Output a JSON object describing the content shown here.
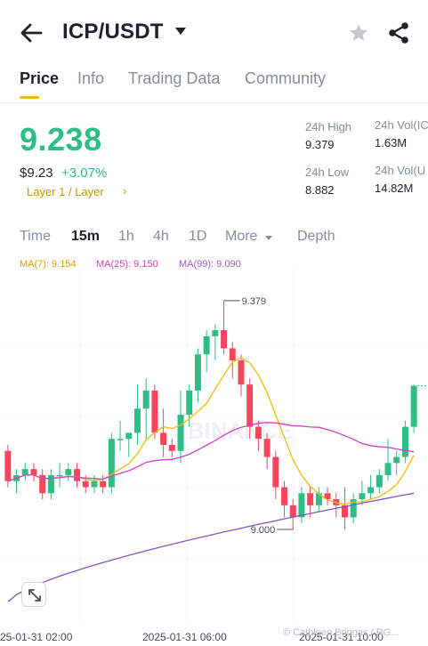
{
  "header": {
    "pair": "ICP/USDT",
    "icons": [
      "back-arrow-icon",
      "dropdown-caret-icon",
      "star-icon",
      "share-icon"
    ]
  },
  "tabs": [
    {
      "label": "Price",
      "active": true
    },
    {
      "label": "Info",
      "active": false
    },
    {
      "label": "Trading Data",
      "active": false
    },
    {
      "label": "Community",
      "active": false
    }
  ],
  "ticker": {
    "last_price": "9.238",
    "usd_price": "$9.23",
    "change_pct": "+3.07%",
    "tag": "Layer 1 / Layer",
    "tag_arrow": "›"
  },
  "stats": {
    "high_label": "24h High",
    "high": "9.379",
    "low_label": "24h Low",
    "low": "8.882",
    "vol_base_label": "24h Vol(IC",
    "vol_base": "1.63M",
    "vol_quote_label": "24h Vol(U",
    "vol_quote": "14.82M"
  },
  "timeframes": [
    "Time",
    "15m",
    "1h",
    "4h",
    "1D",
    "More",
    "Depth"
  ],
  "active_timeframe": "15m",
  "ma": {
    "ma7": "MA(7): 9.154",
    "ma25": "MA(25): 9.150",
    "ma99": "MA(99): 9.090"
  },
  "chart": {
    "high_marker": "9.379",
    "low_marker": "9.000",
    "watermark": "BINANCE",
    "x_labels": [
      "25-01-31 02:00",
      "2025-01-31 06:00",
      "2025-01-31 10:00"
    ],
    "footer_watermark": "© Cathleen Bringas / RG...",
    "colors": {
      "up": "#2ebd85",
      "down": "#f6465d",
      "ma7": "#f0b90b",
      "ma25": "#d63fc9",
      "ma99": "#7e57c2"
    }
  },
  "chart_data": {
    "type": "candlestick",
    "pair": "ICP/USDT",
    "interval": "15m",
    "candles": [
      {
        "o": 9.13,
        "h": 9.14,
        "l": 9.07,
        "c": 9.08
      },
      {
        "o": 9.08,
        "h": 9.1,
        "l": 9.06,
        "c": 9.09
      },
      {
        "o": 9.09,
        "h": 9.11,
        "l": 9.08,
        "c": 9.1
      },
      {
        "o": 9.1,
        "h": 9.11,
        "l": 9.08,
        "c": 9.09
      },
      {
        "o": 9.09,
        "h": 9.1,
        "l": 9.05,
        "c": 9.06
      },
      {
        "o": 9.06,
        "h": 9.1,
        "l": 9.05,
        "c": 9.09
      },
      {
        "o": 9.09,
        "h": 9.11,
        "l": 9.07,
        "c": 9.09
      },
      {
        "o": 9.09,
        "h": 9.11,
        "l": 9.08,
        "c": 9.1
      },
      {
        "o": 9.1,
        "h": 9.11,
        "l": 9.07,
        "c": 9.08
      },
      {
        "o": 9.08,
        "h": 9.09,
        "l": 9.06,
        "c": 9.07
      },
      {
        "o": 9.07,
        "h": 9.09,
        "l": 9.06,
        "c": 9.08
      },
      {
        "o": 9.08,
        "h": 9.09,
        "l": 9.06,
        "c": 9.07
      },
      {
        "o": 9.07,
        "h": 9.16,
        "l": 9.06,
        "c": 9.15
      },
      {
        "o": 9.15,
        "h": 9.18,
        "l": 9.13,
        "c": 9.15
      },
      {
        "o": 9.15,
        "h": 9.16,
        "l": 9.12,
        "c": 9.16
      },
      {
        "o": 9.16,
        "h": 9.24,
        "l": 9.14,
        "c": 9.2
      },
      {
        "o": 9.2,
        "h": 9.25,
        "l": 9.15,
        "c": 9.23
      },
      {
        "o": 9.23,
        "h": 9.24,
        "l": 9.15,
        "c": 9.16
      },
      {
        "o": 9.16,
        "h": 9.2,
        "l": 9.12,
        "c": 9.14
      },
      {
        "o": 9.14,
        "h": 9.15,
        "l": 9.12,
        "c": 9.13
      },
      {
        "o": 9.13,
        "h": 9.23,
        "l": 9.11,
        "c": 9.19
      },
      {
        "o": 9.19,
        "h": 9.24,
        "l": 9.17,
        "c": 9.23
      },
      {
        "o": 9.23,
        "h": 9.3,
        "l": 9.21,
        "c": 9.29
      },
      {
        "o": 9.29,
        "h": 9.33,
        "l": 9.26,
        "c": 9.32
      },
      {
        "o": 9.32,
        "h": 9.34,
        "l": 9.28,
        "c": 9.33
      },
      {
        "o": 9.33,
        "h": 9.379,
        "l": 9.29,
        "c": 9.3
      },
      {
        "o": 9.3,
        "h": 9.31,
        "l": 9.25,
        "c": 9.28
      },
      {
        "o": 9.28,
        "h": 9.29,
        "l": 9.22,
        "c": 9.24
      },
      {
        "o": 9.24,
        "h": 9.25,
        "l": 9.15,
        "c": 9.17
      },
      {
        "o": 9.17,
        "h": 9.18,
        "l": 9.13,
        "c": 9.15
      },
      {
        "o": 9.15,
        "h": 9.16,
        "l": 9.1,
        "c": 9.12
      },
      {
        "o": 9.12,
        "h": 9.13,
        "l": 9.05,
        "c": 9.07
      },
      {
        "o": 9.07,
        "h": 9.08,
        "l": 9.02,
        "c": 9.04
      },
      {
        "o": 9.04,
        "h": 9.05,
        "l": 9.0,
        "c": 9.02
      },
      {
        "o": 9.02,
        "h": 9.07,
        "l": 9.01,
        "c": 9.06
      },
      {
        "o": 9.06,
        "h": 9.07,
        "l": 9.02,
        "c": 9.04
      },
      {
        "o": 9.04,
        "h": 9.07,
        "l": 9.03,
        "c": 9.06
      },
      {
        "o": 9.06,
        "h": 9.07,
        "l": 9.04,
        "c": 9.05
      },
      {
        "o": 9.05,
        "h": 9.06,
        "l": 9.02,
        "c": 9.04
      },
      {
        "o": 9.04,
        "h": 9.07,
        "l": 9.0,
        "c": 9.02
      },
      {
        "o": 9.02,
        "h": 9.06,
        "l": 9.01,
        "c": 9.05
      },
      {
        "o": 9.05,
        "h": 9.08,
        "l": 9.04,
        "c": 9.06
      },
      {
        "o": 9.06,
        "h": 9.09,
        "l": 9.05,
        "c": 9.07
      },
      {
        "o": 9.07,
        "h": 9.1,
        "l": 9.06,
        "c": 9.09
      },
      {
        "o": 9.09,
        "h": 9.15,
        "l": 9.08,
        "c": 9.11
      },
      {
        "o": 9.11,
        "h": 9.13,
        "l": 9.09,
        "c": 9.12
      },
      {
        "o": 9.12,
        "h": 9.18,
        "l": 9.11,
        "c": 9.17
      },
      {
        "o": 9.17,
        "h": 9.24,
        "l": 9.16,
        "c": 9.238
      }
    ],
    "price_markers": {
      "high": 9.379,
      "low": 9.0
    },
    "x_labels": [
      "25-01-31 02:00",
      "2025-01-31 06:00",
      "2025-01-31 10:00"
    ]
  }
}
